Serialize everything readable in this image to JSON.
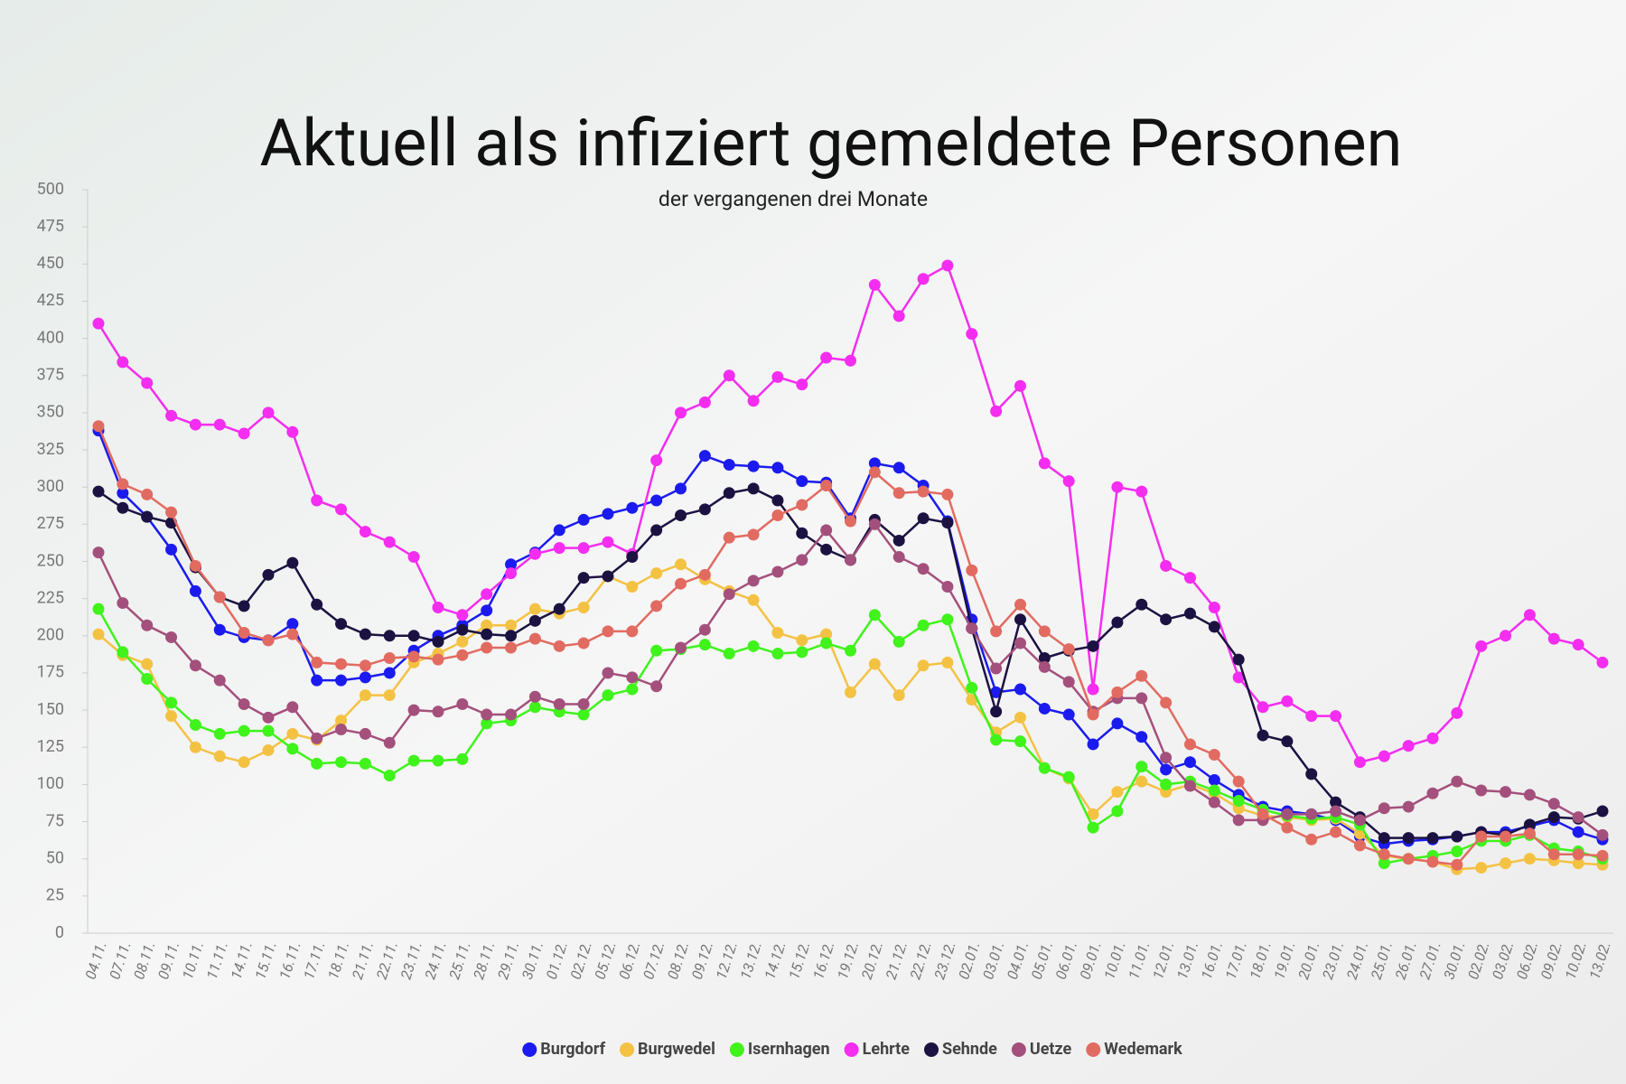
{
  "chart_data": {
    "type": "line",
    "title": "Aktuell als infiziert gemeldete Personen",
    "subtitle": "der vergangenen drei Monate",
    "categories": [
      "04.11.",
      "07.11.",
      "08.11.",
      "09.11.",
      "10.11.",
      "11.11.",
      "14.11.",
      "15.11.",
      "16.11.",
      "17.11.",
      "18.11.",
      "21.11.",
      "22.11.",
      "23.11.",
      "24.11.",
      "25.11.",
      "28.11.",
      "29.11.",
      "30.11.",
      "01.12.",
      "02.12.",
      "05.12.",
      "06.12.",
      "07.12.",
      "08.12.",
      "09.12.",
      "12.12.",
      "13.12.",
      "14.12.",
      "15.12.",
      "16.12.",
      "19.12.",
      "20.12.",
      "21.12.",
      "22.12.",
      "23.12.",
      "02.01.",
      "03.01.",
      "04.01.",
      "05.01.",
      "06.01.",
      "09.01.",
      "10.01.",
      "11.01.",
      "12.01.",
      "13.01.",
      "16.01.",
      "17.01.",
      "18.01.",
      "19.01.",
      "20.01.",
      "23.01.",
      "24.01.",
      "25.01.",
      "26.01.",
      "27.01.",
      "30.01.",
      "02.02.",
      "03.02.",
      "06.02.",
      "09.02.",
      "10.02.",
      "13.02."
    ],
    "series": [
      {
        "name": "Burgdorf",
        "color": "#1b1bef",
        "values": [
          338,
          296,
          280,
          258,
          230,
          204,
          199,
          197,
          208,
          170,
          170,
          172,
          175,
          190,
          200,
          207,
          217,
          248,
          256,
          271,
          278,
          282,
          286,
          291,
          299,
          321,
          315,
          314,
          313,
          304,
          303,
          279,
          316,
          313,
          301,
          277,
          211,
          162,
          164,
          151,
          147,
          127,
          141,
          132,
          110,
          115,
          103,
          93,
          85,
          82,
          80,
          76,
          65,
          60,
          62,
          63,
          65,
          68,
          68,
          72,
          76,
          68,
          63
        ]
      },
      {
        "name": "Burgwedel",
        "color": "#f4c243",
        "values": [
          201,
          187,
          181,
          146,
          125,
          119,
          115,
          123,
          134,
          130,
          143,
          160,
          160,
          182,
          188,
          196,
          207,
          207,
          218,
          215,
          219,
          240,
          233,
          242,
          248,
          238,
          230,
          224,
          202,
          197,
          201,
          162,
          181,
          160,
          180,
          182,
          157,
          135,
          145,
          111,
          104,
          80,
          95,
          102,
          95,
          100,
          94,
          84,
          79,
          78,
          76,
          77,
          67,
          52,
          50,
          48,
          43,
          44,
          47,
          50,
          49,
          47,
          46
        ]
      },
      {
        "name": "Isernhagen",
        "color": "#3ff31b",
        "values": [
          218,
          189,
          171,
          155,
          140,
          134,
          136,
          136,
          124,
          114,
          115,
          114,
          106,
          116,
          116,
          117,
          141,
          143,
          152,
          149,
          147,
          160,
          164,
          190,
          191,
          194,
          188,
          193,
          188,
          189,
          195,
          190,
          214,
          196,
          207,
          211,
          165,
          130,
          129,
          111,
          105,
          71,
          82,
          112,
          100,
          102,
          96,
          89,
          83,
          79,
          77,
          78,
          73,
          47,
          50,
          52,
          55,
          62,
          62,
          66,
          57,
          55,
          50
        ]
      },
      {
        "name": "Lehrte",
        "color": "#f42df0",
        "values": [
          410,
          384,
          370,
          348,
          342,
          342,
          336,
          350,
          337,
          291,
          285,
          270,
          263,
          253,
          219,
          214,
          228,
          242,
          255,
          259,
          259,
          263,
          255,
          318,
          350,
          357,
          375,
          358,
          374,
          369,
          387,
          385,
          436,
          415,
          440,
          449,
          403,
          351,
          368,
          316,
          304,
          164,
          300,
          297,
          247,
          239,
          219,
          172,
          152,
          156,
          146,
          146,
          115,
          119,
          126,
          131,
          148,
          193,
          200,
          214,
          198,
          194,
          182
        ]
      },
      {
        "name": "Sehnde",
        "color": "#1c1242",
        "values": [
          297,
          286,
          280,
          276,
          246,
          226,
          220,
          241,
          249,
          221,
          208,
          201,
          200,
          200,
          196,
          204,
          201,
          200,
          210,
          218,
          239,
          240,
          253,
          271,
          281,
          285,
          296,
          299,
          291,
          269,
          258,
          251,
          278,
          264,
          279,
          276,
          205,
          149,
          211,
          185,
          190,
          193,
          209,
          221,
          211,
          215,
          206,
          184,
          133,
          129,
          107,
          88,
          78,
          64,
          64,
          64,
          65,
          68,
          66,
          73,
          78,
          77,
          82
        ]
      },
      {
        "name": "Uetze",
        "color": "#a4507c",
        "values": [
          256,
          222,
          207,
          199,
          180,
          170,
          154,
          145,
          152,
          131,
          137,
          134,
          128,
          150,
          149,
          154,
          147,
          147,
          159,
          154,
          154,
          175,
          172,
          166,
          192,
          204,
          228,
          237,
          243,
          251,
          271,
          251,
          275,
          253,
          245,
          233,
          205,
          178,
          195,
          179,
          169,
          149,
          158,
          158,
          118,
          99,
          88,
          76,
          76,
          80,
          80,
          82,
          76,
          84,
          85,
          94,
          102,
          96,
          95,
          93,
          87,
          78,
          66
        ]
      },
      {
        "name": "Wedemark",
        "color": "#e26b61",
        "values": [
          341,
          302,
          295,
          283,
          247,
          226,
          202,
          197,
          201,
          182,
          181,
          180,
          185,
          186,
          184,
          187,
          192,
          192,
          198,
          193,
          195,
          203,
          203,
          220,
          235,
          241,
          266,
          268,
          281,
          288,
          301,
          277,
          310,
          296,
          297,
          295,
          244,
          203,
          221,
          203,
          191,
          147,
          162,
          173,
          155,
          127,
          120,
          102,
          80,
          71,
          63,
          68,
          59,
          53,
          50,
          48,
          46,
          65,
          65,
          67,
          53,
          53,
          52
        ]
      }
    ],
    "ylim": [
      0,
      500
    ],
    "yticks": [
      0,
      25,
      50,
      75,
      100,
      125,
      150,
      175,
      200,
      225,
      250,
      275,
      300,
      325,
      350,
      375,
      400,
      425,
      450,
      475,
      500
    ],
    "legend": "bottom"
  }
}
